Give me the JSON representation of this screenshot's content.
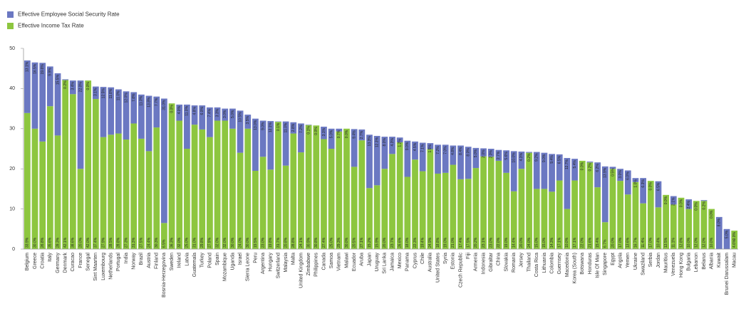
{
  "chart_data": {
    "type": "stacked_bar",
    "categories": [
      "Belgium",
      "Greece",
      "Croatia",
      "Italy",
      "Germany",
      "Denmark",
      "Curacao",
      "France",
      "Senegal",
      "Sint Maarten",
      "Luxembourg",
      "Netherlands",
      "Portugal",
      "India",
      "Norway",
      "Brazil",
      "Austria",
      "Finland",
      "Bosnia-Herzegovina",
      "Sweden",
      "Ireland",
      "Latvia",
      "Guatemala",
      "Turkey",
      "Poland",
      "Spain",
      "Mozambique",
      "Uganda",
      "Israel",
      "Sierra Leone",
      "Peru",
      "Argentina",
      "Hungary",
      "Switzerland",
      "Malaysia",
      "Malta",
      "United Kingdom",
      "Zimbabwe",
      "Philippines",
      "Canada",
      "Samoa",
      "Vietnam",
      "Malawi",
      "Ecuador",
      "Aruba",
      "Japan",
      "Uruguay",
      "Sri Lanka",
      "Jamaica",
      "Mexico",
      "Panama",
      "Cyprus",
      "Chile",
      "Australia",
      "United States",
      "Syria",
      "Estonia",
      "Czech Republic",
      "Fiji",
      "Armenia",
      "Indonesia",
      "Gibraltar",
      "China",
      "Slovakia",
      "Romania",
      "Jersey",
      "Thailand",
      "Costa Rica",
      "Lithuania",
      "Colombia",
      "Guernsey",
      "Macedonia",
      "Korea (South)",
      "Botswana",
      "Honduras",
      "Isle Of Man",
      "Singapore",
      "Egypt",
      "Angola",
      "Yemen",
      "Ukraine",
      "Swaziland",
      "Serbia",
      "Jordan",
      "Mauritius",
      "Venezuela",
      "Hong Kong",
      "Bulgaria",
      "Lebanon",
      "Belarus",
      "Albania",
      "Kuwait",
      "Brunei Darussalam",
      "Macau"
    ],
    "series": [
      {
        "name": "Effective Employee Social Security Rate",
        "color": "#6b78c2",
        "values": [
          13.1,
          16.5,
          19.6,
          9.9,
          15.5,
          0.2,
          3.4,
          22.0,
          0.0,
          3.1,
          12.5,
          11.8,
          11.0,
          12.0,
          7.8,
          11.0,
          13.8,
          7.7,
          31.0,
          0.0,
          4.0,
          11.0,
          4.8,
          6.0,
          7.4,
          3.3,
          3.0,
          5.0,
          10.5,
          3.5,
          13.0,
          9.0,
          12.1,
          0.1,
          11.0,
          2.8,
          7.2,
          0.1,
          0.0,
          3.1,
          5.0,
          0.7,
          0.0,
          9.4,
          2.7,
          13.3,
          12.3,
          8.0,
          4.3,
          1.2,
          9.0,
          4.5,
          7.1,
          1.5,
          7.2,
          7.0,
          4.8,
          8.4,
          8.0,
          5.0,
          2.0,
          2.0,
          2.7,
          5.6,
          10.0,
          4.3,
          0.2,
          9.2,
          9.0,
          9.4,
          6.5,
          12.7,
          5.4,
          0.0,
          0.2,
          6.2,
          13.9,
          0.5,
          3.0,
          6.0,
          1.0,
          6.3,
          0.0,
          6.5,
          0.0,
          2.1,
          0.0,
          2.4,
          0.0,
          0.2,
          0.0,
          8.0,
          5.0,
          0.0
        ],
        "value_labels": [
          "13.1%",
          "16.5%",
          "19.6%",
          "9.9%",
          "15.5%",
          "0.2%",
          "3.4%",
          "22.0%",
          "0.0%",
          "3.1%",
          "12.5%",
          "11.8%",
          "11.0%",
          "12.0%",
          "7.8%",
          "11.0%",
          "13.8%",
          "7.7%",
          "31.0%",
          "0.0%",
          "4.0%",
          "11.0%",
          "4.8%",
          "6.0%",
          "7.4%",
          "3.3%",
          "3.0%",
          "5.0%",
          "10.5%",
          "3.5%",
          "13.0%",
          "9.0%",
          "12.1%",
          "0.1%",
          "11.0%",
          "2.8%",
          "7.2%",
          "0.1%",
          "0.0%",
          "3.1%",
          "5.0%",
          "0.7%",
          "0.0%",
          "9.4%",
          "2.7%",
          "13.3%",
          "12.3%",
          "8.0%",
          "4.3%",
          "1.2%",
          "9.0%",
          "4.5%",
          "7.1%",
          "1.5%",
          "7.2%",
          "7.0%",
          "4.8%",
          "8.4%",
          "8.0%",
          "5.0%",
          "2.0%",
          "2.0%",
          "2.7%",
          "5.6%",
          "10.0%",
          "4.3%",
          "0.2%",
          "9.2%",
          "9.0%",
          "9.4%",
          "6.5%",
          "12.7%",
          "5.4%",
          "0.0%",
          "0.2%",
          "6.2%",
          "13.9%",
          "0.5%",
          "3.0%",
          "6.0%",
          "1.0%",
          "6.3%",
          "0.0%",
          "6.5%",
          "0.0%",
          "2.1%",
          "0.0%",
          "2.4%",
          "0.0%",
          "0.2%",
          "0.0%",
          "8.0%",
          "5.0%",
          "0.0%"
        ]
      },
      {
        "name": "Effective Income Tax Rate",
        "color": "#8dc63f",
        "values": [
          33.9,
          30.0,
          26.8,
          35.6,
          28.3,
          42.1,
          38.6,
          20.0,
          42.0,
          37.4,
          27.9,
          28.5,
          28.8,
          27.3,
          31.3,
          27.5,
          24.4,
          30.3,
          6.5,
          36.3,
          32.0,
          25.0,
          31.0,
          29.8,
          27.9,
          32.0,
          32.0,
          30.0,
          24.0,
          30.0,
          19.5,
          23.0,
          19.8,
          31.7,
          20.8,
          28.8,
          24.1,
          30.9,
          30.8,
          27.4,
          25.0,
          29.3,
          30.0,
          20.5,
          27.1,
          15.2,
          15.9,
          20.0,
          23.7,
          26.6,
          18.0,
          22.3,
          19.4,
          24.9,
          18.8,
          19.0,
          21.0,
          17.4,
          17.5,
          20.2,
          23.1,
          23.0,
          22.0,
          19.0,
          14.4,
          20.0,
          24.0,
          15.0,
          15.0,
          14.3,
          17.1,
          10.0,
          17.1,
          22.0,
          21.6,
          15.4,
          6.7,
          20.0,
          17.0,
          13.6,
          16.7,
          11.4,
          17.0,
          10.4,
          13.5,
          11.1,
          12.8,
          10.0,
          12.0,
          12.0,
          10.0,
          0.0,
          0.0,
          4.6
        ],
        "value_labels": [
          "33.9%",
          "30.0%",
          "26.8%",
          "35.6%",
          "28.3%",
          "42.1%",
          "38.6%",
          "20.0%",
          "42.0%",
          "37.4%",
          "27.9%",
          "28.5%",
          "28.8%",
          "27.3%",
          "31.3%",
          "27.5%",
          "24.4%",
          "30.3%",
          "6.5%",
          "36.3%",
          "32.0%",
          "25.0%",
          "31.0%",
          "29.8%",
          "27.9%",
          "32.0%",
          "32.0%",
          "30.0%",
          "24.0%",
          "30.0%",
          "19.5%",
          "23.0%",
          "19.8%",
          "31.7%",
          "20.8%",
          "28.8%",
          "24.1%",
          "30.9%",
          "30.8%",
          "27.4%",
          "25.0%",
          "29.3%",
          "30.0%",
          "20.5%",
          "27.1%",
          "15.2%",
          "15.9%",
          "20.0%",
          "23.7%",
          "26.6%",
          "18.0%",
          "22.3%",
          "19.4%",
          "24.9%",
          "18.8%",
          "19.0%",
          "21.0%",
          "17.4%",
          "17.5%",
          "20.2%",
          "23.1%",
          "23.0%",
          "22.0%",
          "19.0%",
          "14.4%",
          "20.0%",
          "24.0%",
          "15.0%",
          "15.0%",
          "14.3%",
          "17.1%",
          "10.0%",
          "17.1%",
          "22.0%",
          "21.6%",
          "15.4%",
          "6.7%",
          "20.0%",
          "17.0%",
          "13.6%",
          "16.7%",
          "11.4%",
          "17.0%",
          "10.4%",
          "13.5%",
          "11.1%",
          "12.8%",
          "10.0%",
          "12.0%",
          "12.0%",
          "10.0%",
          "0.0%",
          "0.0%",
          "4.6%"
        ]
      }
    ],
    "ylim": [
      0,
      50
    ],
    "yticks": [
      0,
      10,
      20,
      30,
      40,
      50
    ],
    "grid": false,
    "legend": "top-left"
  }
}
